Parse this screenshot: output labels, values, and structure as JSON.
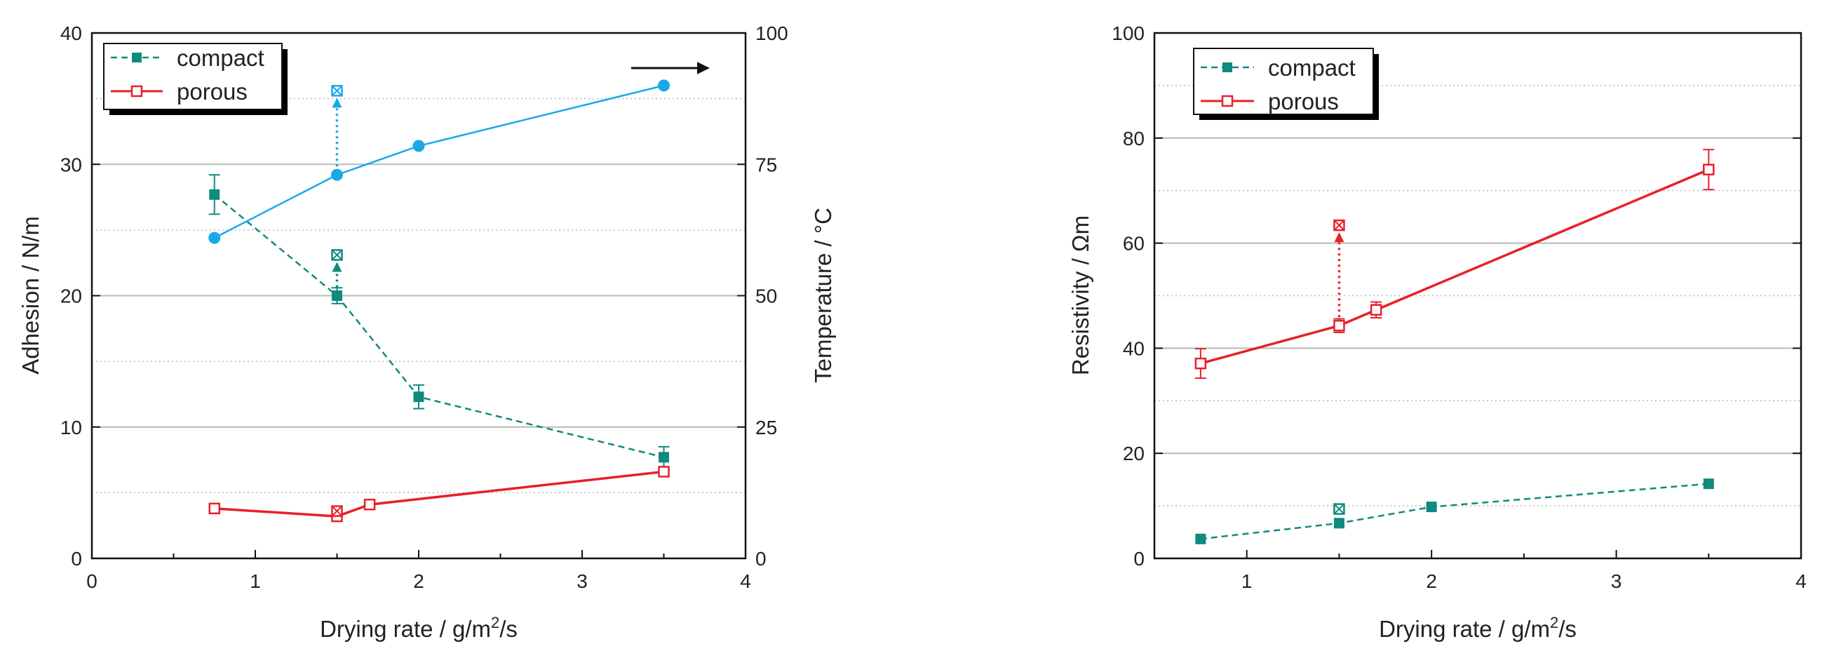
{
  "colors": {
    "compact": "#0f8a7e",
    "porous": "#e8202a",
    "temperature": "#1aa8e8",
    "gridline": "#b9b9b9",
    "axis": "#111111"
  },
  "chart_data": [
    {
      "type": "line",
      "panel": "left",
      "xlabel_main": "Drying rate  /  g/m",
      "xlabel_sup": "2",
      "xlabel_tail": "/s",
      "ylabel": "Adhesion  /  N/m",
      "y2label": "Temperature  /  °C",
      "xlim": [
        0,
        4
      ],
      "ylim": [
        0,
        40
      ],
      "y2lim": [
        0,
        100
      ],
      "xticks": [
        0,
        1,
        2,
        3,
        4
      ],
      "yticks": [
        0,
        10,
        20,
        30,
        40
      ],
      "y2ticks": [
        0,
        25,
        50,
        75,
        100
      ],
      "grid": "horizontal",
      "legend": {
        "position": "top-left",
        "entries": [
          "compact",
          "porous"
        ]
      },
      "series": [
        {
          "name": "compact",
          "style": "dashed-filled-square",
          "points": [
            {
              "x": 0.75,
              "y": 27.7,
              "err": 1.5
            },
            {
              "x": 1.5,
              "y": 20.0,
              "err": 0.6
            },
            {
              "x": 2.0,
              "y": 12.3,
              "err": 0.9
            },
            {
              "x": 3.5,
              "y": 7.7,
              "err": 0.8
            }
          ],
          "extra_point": {
            "x": 1.5,
            "y": 23.1,
            "from_y": 20.0
          }
        },
        {
          "name": "porous",
          "style": "solid-open-square",
          "points": [
            {
              "x": 0.75,
              "y": 3.8
            },
            {
              "x": 1.5,
              "y": 3.2
            },
            {
              "x": 1.7,
              "y": 4.1
            },
            {
              "x": 3.5,
              "y": 6.6
            }
          ],
          "extra_point": {
            "x": 1.5,
            "y": 3.6
          }
        },
        {
          "name": "temperature",
          "axis": "right",
          "style": "solid-circle",
          "points": [
            {
              "x": 0.75,
              "y": 61
            },
            {
              "x": 1.5,
              "y": 73
            },
            {
              "x": 2.0,
              "y": 78.5
            },
            {
              "x": 3.5,
              "y": 90
            }
          ],
          "extra_point": {
            "x": 1.5,
            "y": 89,
            "from_y": 73
          }
        }
      ],
      "annotation": "arrow pointing to right axis"
    },
    {
      "type": "line",
      "panel": "right",
      "xlabel_main": "Drying rate  /  g/m",
      "xlabel_sup": "2",
      "xlabel_tail": "/s",
      "ylabel": "Resistivity  /  Ωm",
      "xlim": [
        0.5,
        4
      ],
      "ylim": [
        0,
        100
      ],
      "xticks": [
        1,
        2,
        3,
        4
      ],
      "yticks": [
        0,
        20,
        40,
        60,
        80,
        100
      ],
      "grid": "horizontal",
      "legend": {
        "position": "top-left",
        "entries": [
          "compact",
          "porous"
        ]
      },
      "series": [
        {
          "name": "compact",
          "style": "dashed-filled-square",
          "points": [
            {
              "x": 0.75,
              "y": 3.7
            },
            {
              "x": 1.5,
              "y": 6.7
            },
            {
              "x": 2.0,
              "y": 9.8
            },
            {
              "x": 3.5,
              "y": 14.2
            }
          ],
          "extra_point": {
            "x": 1.5,
            "y": 9.4
          }
        },
        {
          "name": "porous",
          "style": "solid-open-square",
          "points": [
            {
              "x": 0.75,
              "y": 37.1,
              "err": 2.8
            },
            {
              "x": 1.5,
              "y": 44.3,
              "err": 1.3
            },
            {
              "x": 1.7,
              "y": 47.3,
              "err": 1.5
            },
            {
              "x": 3.5,
              "y": 74.0,
              "err": 3.8
            }
          ],
          "extra_point": {
            "x": 1.5,
            "y": 63.4,
            "from_y": 44.3
          }
        }
      ]
    }
  ]
}
